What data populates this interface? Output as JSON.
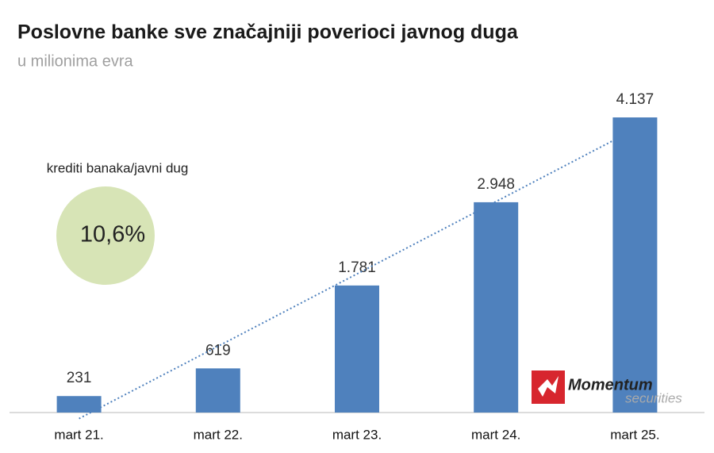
{
  "chart_data": {
    "type": "bar",
    "title": "Poslovne banke sve značajniji poverioci javnog duga",
    "subtitle": "u milionima evra",
    "categories": [
      "mart 21.",
      "mart 22.",
      "mart 23.",
      "mart 24.",
      "mart 25."
    ],
    "values": [
      231,
      619,
      1781,
      2948,
      4137
    ],
    "value_labels": [
      "231",
      "619",
      "1.781",
      "2.948",
      "4.137"
    ],
    "color": "#4f81bd",
    "trendline": true,
    "annotation": {
      "label": "krediti banaka/javni dug",
      "text": "10,6%"
    },
    "logo": {
      "name": "Momentum",
      "sub": "securities"
    }
  }
}
